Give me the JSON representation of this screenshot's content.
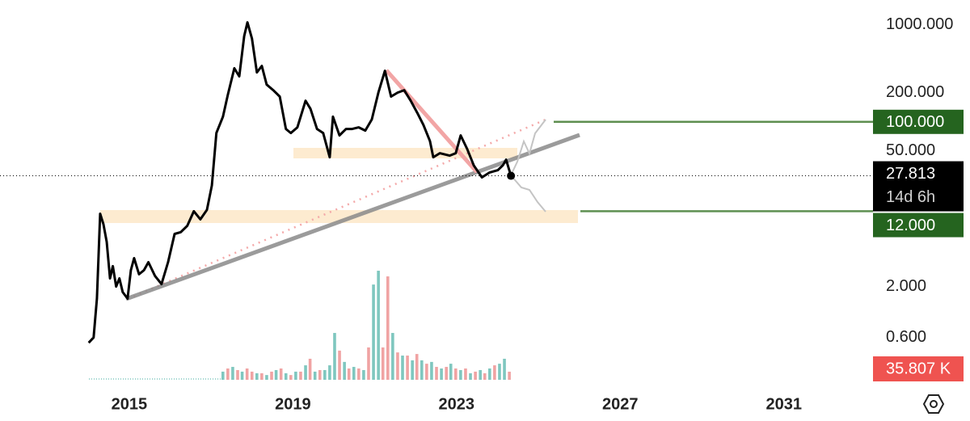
{
  "chart_data": {
    "type": "line",
    "log_scale": true,
    "grid": false,
    "color": "#000000",
    "xlim": [
      2012,
      2033
    ],
    "xticks": [
      2015,
      2019,
      2023,
      2027,
      2031
    ],
    "ylim": [
      0.15,
      1800
    ],
    "yticks": [
      {
        "value": 1000,
        "label": "1000.000"
      },
      {
        "value": 200,
        "label": "200.000"
      },
      {
        "value": 50,
        "label": "50.000"
      },
      {
        "value": 2,
        "label": "2.000"
      },
      {
        "value": 0.6,
        "label": "0.600"
      }
    ],
    "y2lim": [
      0,
      500
    ],
    "x": [
      2014.01,
      2014.13,
      2014.21,
      2014.29,
      2014.37,
      2014.45,
      2014.53,
      2014.6,
      2014.68,
      2014.76,
      2014.84,
      2014.96,
      2015.04,
      2015.12,
      2015.24,
      2015.36,
      2015.47,
      2015.63,
      2015.79,
      2015.95,
      2016.11,
      2016.26,
      2016.42,
      2016.58,
      2016.74,
      2016.9,
      2017.02,
      2017.13,
      2017.29,
      2017.41,
      2017.57,
      2017.69,
      2017.81,
      2017.89,
      2018.0,
      2018.12,
      2018.24,
      2018.36,
      2018.52,
      2018.68,
      2018.83,
      2018.95,
      2019.11,
      2019.31,
      2019.43,
      2019.59,
      2019.74,
      2019.9,
      2019.98,
      2020.14,
      2020.3,
      2020.45,
      2020.61,
      2020.77,
      2020.93,
      2021.09,
      2021.25,
      2021.4,
      2021.56,
      2021.72,
      2021.88,
      2022.04,
      2022.19,
      2022.35,
      2022.43,
      2022.59,
      2022.83,
      2022.98,
      2023.1,
      2023.26,
      2023.42,
      2023.62,
      2023.81,
      2024.01,
      2024.13,
      2024.21,
      2024.33
    ],
    "values": [
      0.53,
      0.6,
      1.51,
      11.3,
      8.8,
      5.8,
      2.44,
      3.26,
      2.01,
      2.44,
      1.76,
      1.51,
      2.96,
      3.94,
      2.69,
      2.96,
      3.58,
      2.59,
      2.13,
      3.58,
      7.0,
      7.3,
      8.5,
      12.0,
      9.9,
      12.4,
      22.1,
      76.7,
      113,
      189,
      356,
      294,
      766,
      1059,
      722,
      323,
      377,
      242,
      212,
      182,
      84.5,
      76.7,
      87.7,
      165,
      136,
      84.5,
      76.7,
      43.2,
      113,
      72.5,
      84.5,
      84.5,
      87.7,
      81.3,
      106,
      200,
      336,
      182,
      200,
      212,
      165,
      124,
      92.9,
      63.4,
      43.2,
      47.5,
      44.9,
      47.5,
      72.5,
      52.4,
      35.6,
      26.8,
      30.1,
      31.8,
      35.6,
      40.8,
      27.813
    ],
    "volume": {
      "axis": "y2",
      "x": [
        2017.29,
        2017.41,
        2017.53,
        2017.65,
        2017.76,
        2017.88,
        2018.0,
        2018.12,
        2018.24,
        2018.36,
        2018.48,
        2018.59,
        2018.71,
        2018.83,
        2018.95,
        2019.07,
        2019.19,
        2019.31,
        2019.42,
        2019.54,
        2019.66,
        2019.78,
        2019.9,
        2020.02,
        2020.14,
        2020.26,
        2020.37,
        2020.49,
        2020.61,
        2020.73,
        2020.85,
        2020.97,
        2021.09,
        2021.2,
        2021.32,
        2021.44,
        2021.56,
        2021.68,
        2021.8,
        2021.92,
        2022.03,
        2022.15,
        2022.27,
        2022.39,
        2022.51,
        2022.63,
        2022.75,
        2022.86,
        2022.98,
        2023.1,
        2023.22,
        2023.34,
        2023.46,
        2023.58,
        2023.69,
        2023.81,
        2023.93,
        2024.05,
        2024.17,
        2024.29
      ],
      "values": [
        36,
        50,
        57,
        43,
        36,
        50,
        36,
        29,
        29,
        21,
        36,
        43,
        50,
        29,
        21,
        36,
        36,
        64,
        93,
        36,
        43,
        43,
        64,
        207,
        129,
        79,
        50,
        57,
        50,
        43,
        143,
        421,
        482,
        143,
        457,
        207,
        121,
        107,
        107,
        86,
        114,
        86,
        71,
        79,
        57,
        50,
        57,
        71,
        50,
        43,
        50,
        29,
        36,
        43,
        29,
        50,
        64,
        71,
        93,
        35.807
      ],
      "colors": [
        "#7fc7bf",
        "#f0a3a3",
        "#7fc7bf",
        "#f0a3a3",
        "#7fc7bf",
        "#f0a3a3",
        "#f0a3a3",
        "#7fc7bf",
        "#f0a3a3",
        "#7fc7bf",
        "#f0a3a3",
        "#7fc7bf",
        "#f0a3a3",
        "#7fc7bf",
        "#f0a3a3",
        "#7fc7bf",
        "#f0a3a3",
        "#7fc7bf",
        "#f0a3a3",
        "#7fc7bf",
        "#f0a3a3",
        "#7fc7bf",
        "#7fc7bf",
        "#7fc7bf",
        "#f0a3a3",
        "#7fc7bf",
        "#f0a3a3",
        "#7fc7bf",
        "#f0a3a3",
        "#7fc7bf",
        "#f0a3a3",
        "#7fc7bf",
        "#7fc7bf",
        "#f0a3a3",
        "#f0a3a3",
        "#7fc7bf",
        "#f0a3a3",
        "#7fc7bf",
        "#f0a3a3",
        "#7fc7bf",
        "#f0a3a3",
        "#7fc7bf",
        "#f0a3a3",
        "#7fc7bf",
        "#f0a3a3",
        "#7fc7bf",
        "#f0a3a3",
        "#7fc7bf",
        "#f0a3a3",
        "#7fc7bf",
        "#f0a3a3",
        "#7fc7bf",
        "#f0a3a3",
        "#7fc7bf",
        "#f0a3a3",
        "#7fc7bf",
        "#f0a3a3",
        "#7fc7bf",
        "#7fc7bf",
        "#f0a3a3"
      ]
    },
    "tags": [
      {
        "value": 100,
        "label": "100.000",
        "color": "#25641f"
      },
      {
        "value": 27.813,
        "label": "27.813",
        "sub": "14d 6h",
        "color": "#000000"
      },
      {
        "value": 12,
        "label": "12.000",
        "color": "#25641f"
      },
      {
        "value": 35.807,
        "label": "35.807 K",
        "axis": "y2",
        "color": "#ef5350"
      }
    ]
  }
}
